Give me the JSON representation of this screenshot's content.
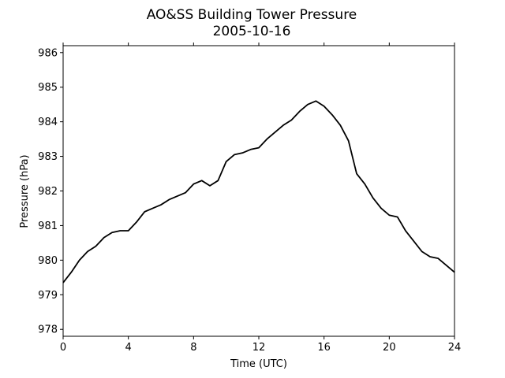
{
  "chart_data": {
    "type": "line",
    "title": "AO&SS Building Tower Pressure",
    "subtitle": "2005-10-16",
    "xlabel": "Time (UTC)",
    "ylabel": "Pressure (hPa)",
    "xlim": [
      0,
      24
    ],
    "ylim": [
      977.8,
      986.2
    ],
    "xticks": [
      0,
      4,
      8,
      12,
      16,
      20,
      24
    ],
    "xtick_labels": [
      "0",
      "4",
      "8",
      "12",
      "16",
      "20",
      "24"
    ],
    "yticks": [
      978,
      979,
      980,
      981,
      982,
      983,
      984,
      985,
      986
    ],
    "ytick_labels": [
      "978",
      "979",
      "980",
      "981",
      "982",
      "983",
      "984",
      "985",
      "986"
    ],
    "grid": false,
    "line_color": "#000000",
    "series": [
      {
        "x": [
          0,
          0.5,
          1,
          1.5,
          2,
          2.5,
          3,
          3.5,
          4,
          4.5,
          5,
          5.5,
          6,
          6.5,
          7,
          7.5,
          8,
          8.5,
          9,
          9.5,
          10,
          10.5,
          11,
          11.5,
          12,
          12.5,
          13,
          13.5,
          14,
          14.5,
          15,
          15.5,
          16,
          16.5,
          17,
          17.5,
          18,
          18.5,
          19,
          19.5,
          20,
          20.5,
          21,
          21.5,
          22,
          22.5,
          23,
          23.5,
          24
        ],
        "values": [
          979.35,
          979.65,
          980.0,
          980.25,
          980.4,
          980.65,
          980.8,
          980.85,
          980.85,
          981.1,
          981.4,
          981.5,
          981.6,
          981.75,
          981.85,
          981.95,
          982.2,
          982.3,
          982.15,
          982.3,
          982.85,
          983.05,
          983.1,
          983.2,
          983.25,
          983.5,
          983.7,
          983.9,
          984.05,
          984.3,
          984.5,
          984.6,
          984.45,
          984.2,
          983.9,
          983.45,
          982.5,
          982.2,
          981.8,
          981.5,
          981.3,
          981.25,
          980.85,
          980.55,
          980.25,
          980.1,
          980.05,
          979.85,
          979.65
        ]
      }
    ]
  }
}
